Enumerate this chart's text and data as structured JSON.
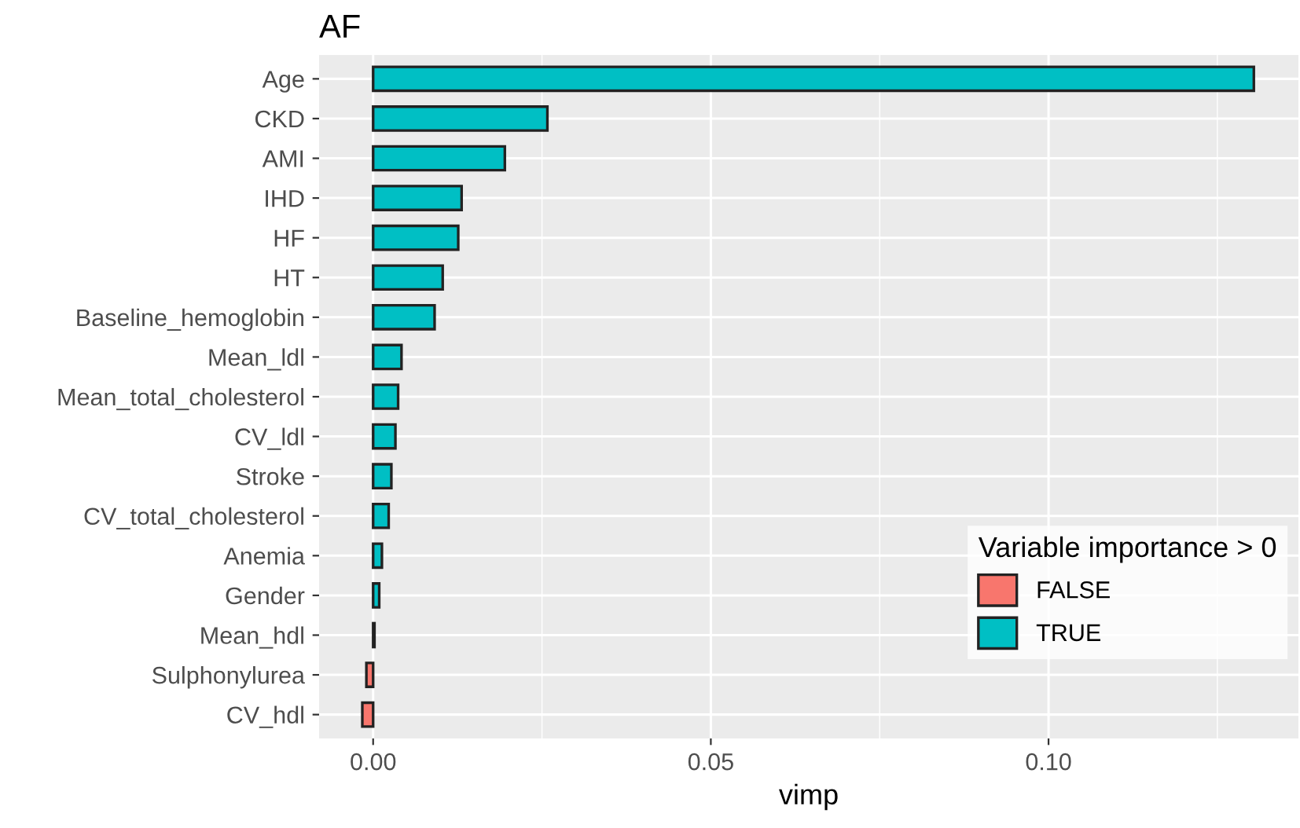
{
  "chart_data": {
    "type": "bar",
    "orientation": "horizontal",
    "title": "AF",
    "xlabel": "vimp",
    "legend_title": "Variable importance > 0",
    "legend": "bottom right",
    "grid": true,
    "categories": [
      "Age",
      "CKD",
      "AMI",
      "IHD",
      "HF",
      "HT",
      "Baseline_hemoglobin",
      "Mean_ldl",
      "Mean_total_cholesterol",
      "CV_ldl",
      "Stroke",
      "CV_total_cholesterol",
      "Anemia",
      "Gender",
      "Mean_hdl",
      "Sulphonylurea",
      "CV_hdl"
    ],
    "series": [
      {
        "name": "FALSE",
        "color": "#f8766d",
        "values": [
          null,
          null,
          null,
          null,
          null,
          null,
          null,
          null,
          null,
          null,
          null,
          null,
          null,
          null,
          null,
          -0.001,
          -0.0016
        ]
      },
      {
        "name": "TRUE",
        "color": "#00bfc4",
        "values": [
          0.1304,
          0.0258,
          0.0195,
          0.0131,
          0.0126,
          0.0103,
          0.0091,
          0.0042,
          0.0037,
          0.0033,
          0.0027,
          0.0023,
          0.0013,
          0.0009,
          0.0002,
          null,
          null
        ]
      }
    ],
    "xlim": [
      -0.008,
      0.137
    ],
    "xticks": [
      {
        "value": 0,
        "label": "0.00"
      },
      {
        "value": 0.05,
        "label": "0.05"
      },
      {
        "value": 0.1,
        "label": "0.10"
      }
    ]
  }
}
